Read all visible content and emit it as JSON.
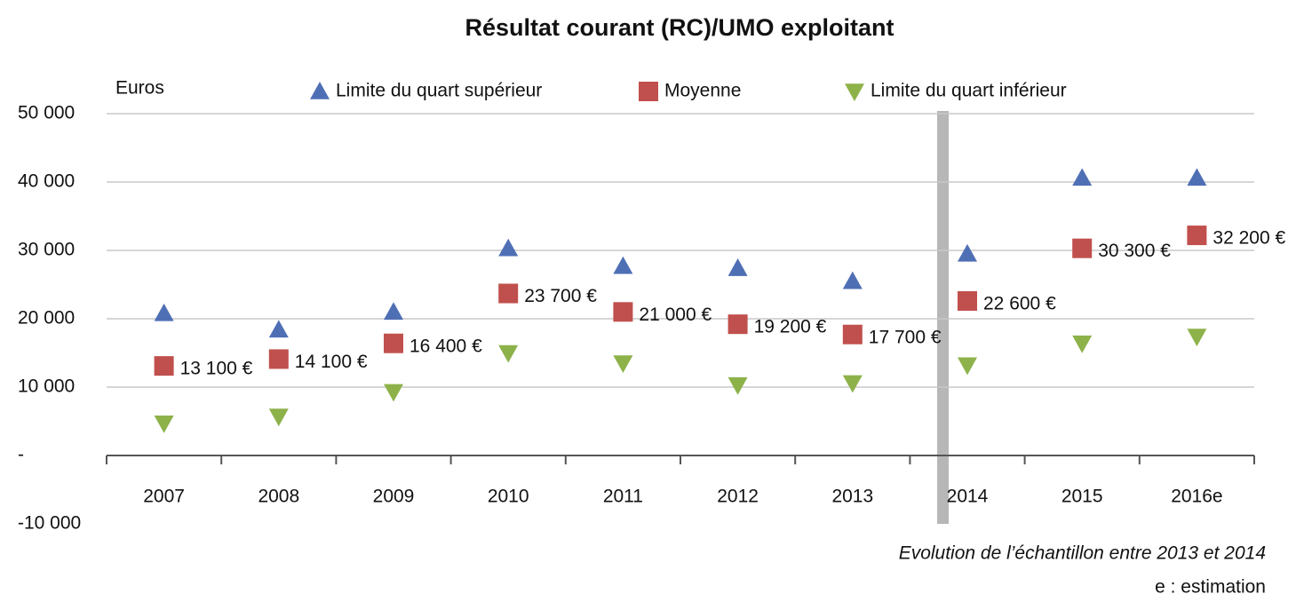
{
  "chart_data": {
    "type": "scatter",
    "title": "Résultat courant (RC)/UMO exploitant",
    "y_label": "Euros",
    "categories": [
      "2007",
      "2008",
      "2009",
      "2010",
      "2011",
      "2012",
      "2013",
      "2014",
      "2015",
      "2016e"
    ],
    "series": [
      {
        "name": "Limite du quart supérieur",
        "color": "#4f6fb5",
        "marker": "triangle-up",
        "values": [
          20800,
          18400,
          21000,
          30300,
          27700,
          27400,
          25500,
          29500,
          40600,
          40600
        ]
      },
      {
        "name": "Moyenne",
        "color": "#c0504d",
        "marker": "square",
        "values": [
          13100,
          14100,
          16400,
          23700,
          21000,
          19200,
          17700,
          22600,
          30300,
          32200
        ],
        "value_labels": [
          "13 100 €",
          "14 100 €",
          "16 400 €",
          "23 700 €",
          "21 000 €",
          "19 200 €",
          "17 700 €",
          "22 600 €",
          "30 300 €",
          "32 200 €"
        ]
      },
      {
        "name": "Limite du quart inférieur",
        "color": "#8db24a",
        "marker": "triangle-down",
        "values": [
          4700,
          5700,
          9300,
          15000,
          13500,
          10300,
          10600,
          13200,
          16400,
          17400
        ]
      }
    ],
    "ylim": [
      -10000,
      50000
    ],
    "yticks": [
      {
        "value": -10000,
        "label": "-10 000"
      },
      {
        "value": 0,
        "label": "-"
      },
      {
        "value": 10000,
        "label": "10 000"
      },
      {
        "value": 20000,
        "label": "20 000"
      },
      {
        "value": 30000,
        "label": "30 000"
      },
      {
        "value": 40000,
        "label": "40 000"
      },
      {
        "value": 50000,
        "label": "50 000"
      }
    ],
    "negative_tick_color": "#e02020",
    "grid": true,
    "legend": "top",
    "annotations": [
      "Evolution de l’échantillon entre 2013 et 2014",
      "e : estimation"
    ]
  }
}
